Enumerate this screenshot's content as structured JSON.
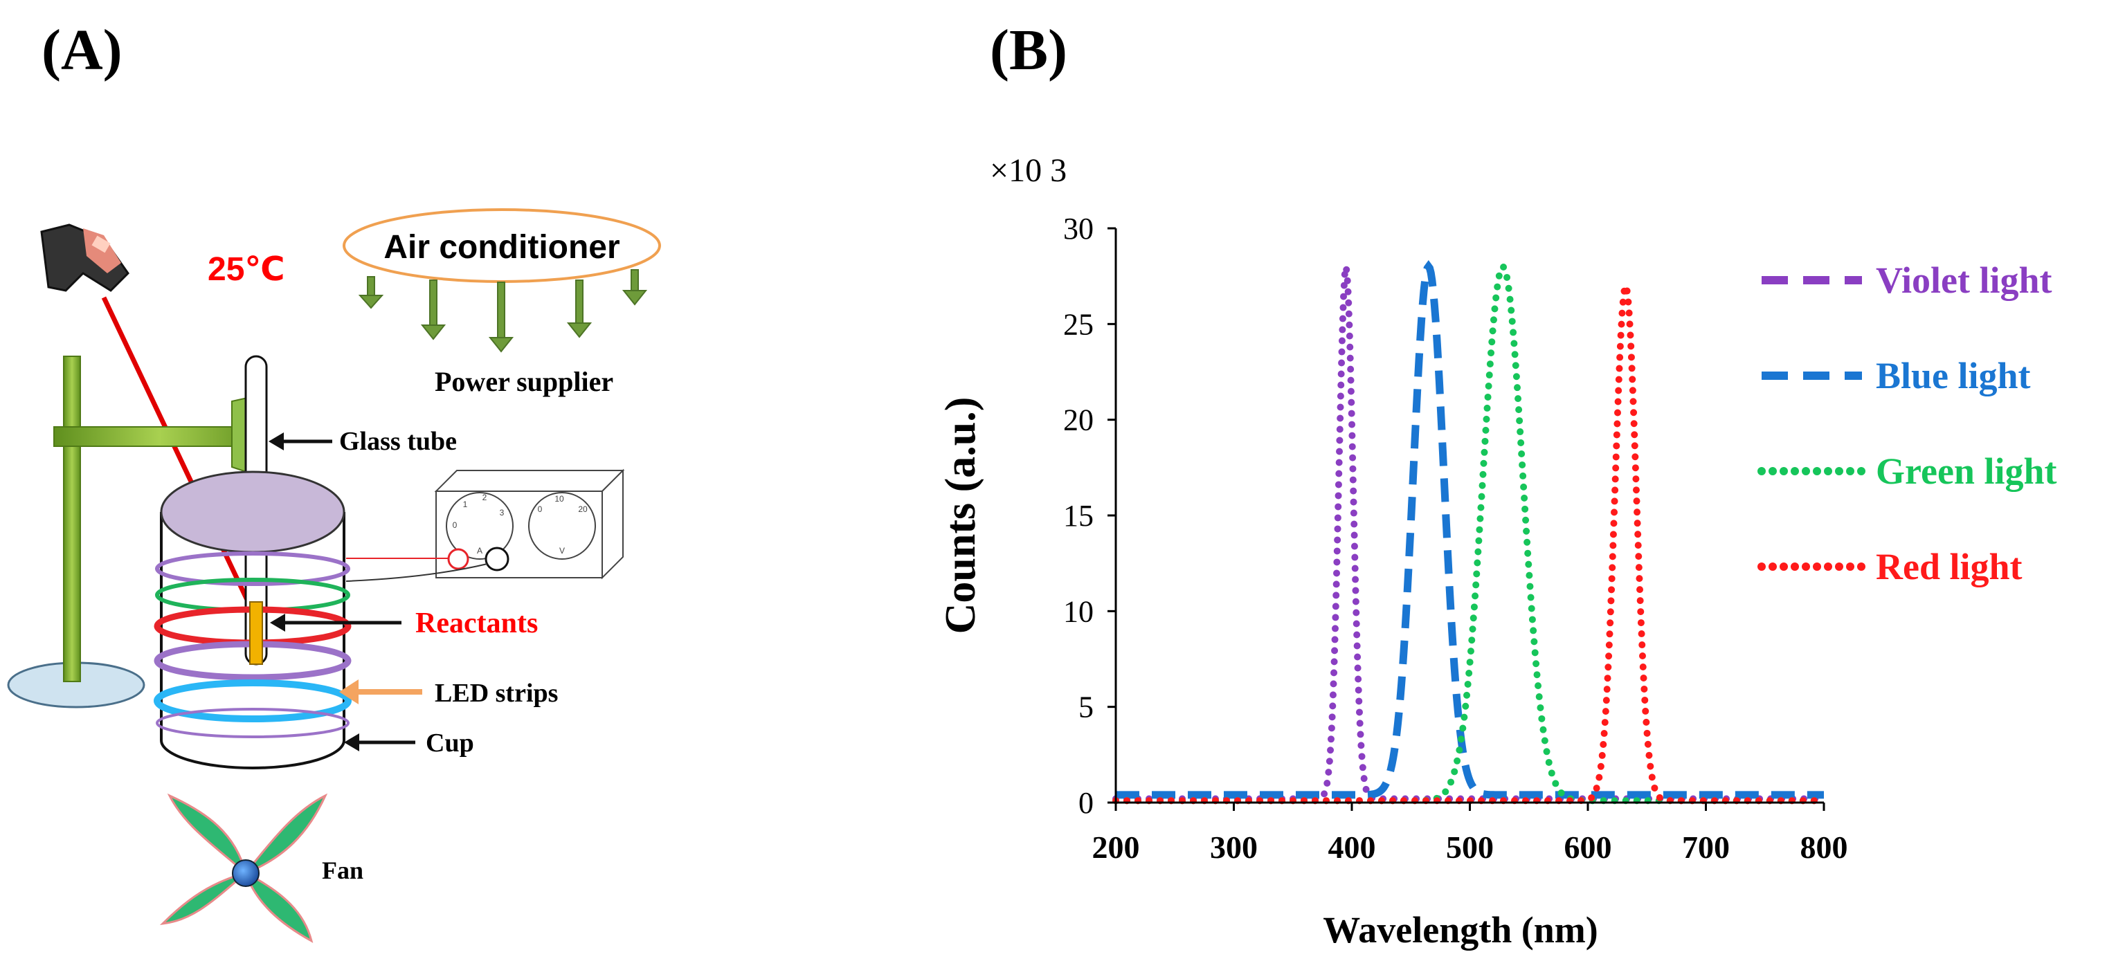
{
  "panel_a": {
    "label": "(A)",
    "temperature": "25℃",
    "air_conditioner": "Air conditioner",
    "power_supplier": "Power supplier",
    "glass_tube": "Glass tube",
    "reactants": "Reactants",
    "led_strips": "LED strips",
    "cup": "Cup",
    "fan": "Fan",
    "dial_left_ticks": [
      "0",
      "1",
      "2",
      "3",
      "A"
    ],
    "dial_right_ticks": [
      "0",
      "10",
      "20",
      "V"
    ],
    "colors": {
      "temperature": "#ff0000",
      "reactants": "#ff0000",
      "ac_outline": "#f0a050",
      "arrows_green": "#6e9b3a",
      "stand": "#7aa52a",
      "beaker_top": "#c8b8d8",
      "reactant_tube": "#f2b200",
      "led_arrow": "#f4a460",
      "ring_violet": "#9b72c8",
      "ring_green": "#1fb35a",
      "ring_red": "#e8242a",
      "ring_cyan": "#29b6f6",
      "fan_blade": "#2eb872",
      "fan_hub": "#1e6fd9",
      "laser": "#e00000"
    }
  },
  "panel_b": {
    "label": "(B)",
    "multiplier": "×10 3"
  },
  "chart_data": {
    "type": "line",
    "xlabel": "Wavelength (nm)",
    "ylabel": "Counts (a.u.)",
    "y_multiplier": "×10 3",
    "xlim": [
      200,
      800
    ],
    "ylim": [
      0,
      30
    ],
    "x_ticks": [
      "200",
      "300",
      "400",
      "500",
      "600",
      "700",
      "800"
    ],
    "y_ticks": [
      "0",
      "5",
      "10",
      "15",
      "20",
      "25",
      "30"
    ],
    "legend_position": "right",
    "series": [
      {
        "name": "Violet light",
        "color": "#8a3ec2",
        "style": "dotted",
        "legend_style": "dashed",
        "baseline": 0.2,
        "peak_x": 395,
        "peak_y": 28,
        "half_width": 6
      },
      {
        "name": "Blue light",
        "color": "#1a76d2",
        "style": "dashed",
        "legend_style": "dashed",
        "baseline": 0.4,
        "peak_x": 465,
        "peak_y": 28,
        "half_width": 13
      },
      {
        "name": "Green light",
        "color": "#16c55a",
        "style": "dotted",
        "legend_style": "dotted",
        "baseline": 0.1,
        "peak_x": 528,
        "peak_y": 28,
        "half_width": 17
      },
      {
        "name": "Red light",
        "color": "#ff1a1a",
        "style": "dotted",
        "legend_style": "dotted",
        "baseline": 0.1,
        "peak_x": 632,
        "peak_y": 27,
        "half_width": 9
      }
    ]
  }
}
